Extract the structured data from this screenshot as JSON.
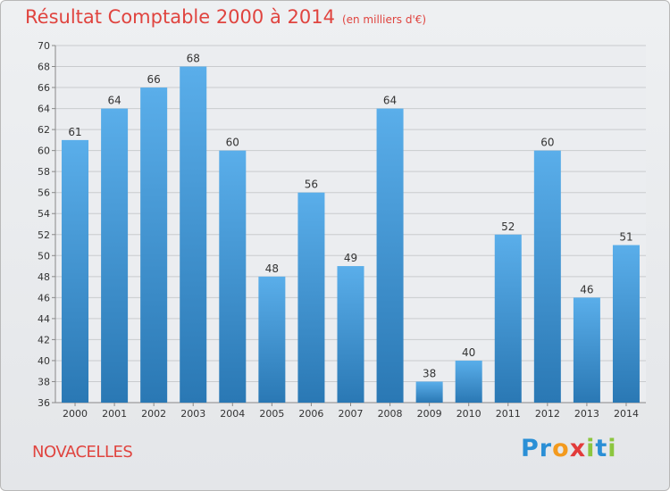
{
  "header": {
    "title": "Résultat Comptable 2000 à 2014",
    "subtitle": "(en milliers d'€)"
  },
  "footer": {
    "commune": "NOVACELLES",
    "logo": [
      "P",
      "r",
      "o",
      "x",
      "i",
      "t",
      "i"
    ]
  },
  "colors": {
    "bar_top": "#5aaeea",
    "bar_bottom": "#2a78b4",
    "title": "#e0443f",
    "grid": "#c9cbce",
    "axis_text": "#333333"
  },
  "chart_data": {
    "type": "bar",
    "categories": [
      "2000",
      "2001",
      "2002",
      "2003",
      "2004",
      "2005",
      "2006",
      "2007",
      "2008",
      "2009",
      "2010",
      "2011",
      "2012",
      "2013",
      "2014"
    ],
    "values": [
      61,
      64,
      66,
      68,
      60,
      48,
      56,
      49,
      64,
      38,
      40,
      52,
      60,
      46,
      51
    ],
    "ylim": [
      36,
      70
    ],
    "yticks": [
      36,
      38,
      40,
      42,
      44,
      46,
      48,
      50,
      52,
      54,
      56,
      58,
      60,
      62,
      64,
      66,
      68,
      70
    ],
    "grid": true,
    "data_labels": true
  }
}
